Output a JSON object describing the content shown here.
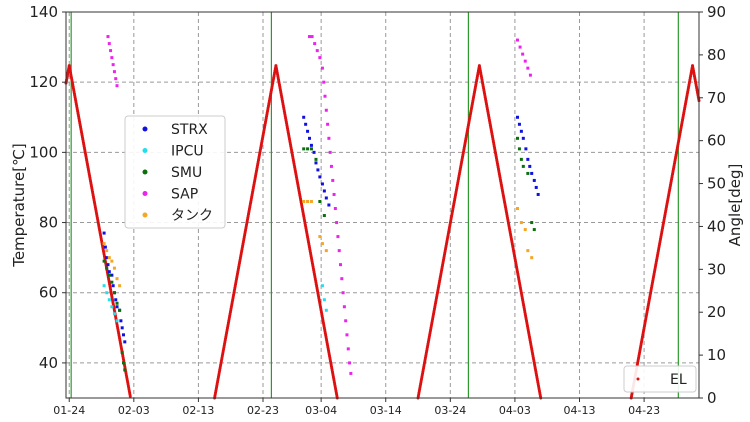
{
  "chart_data": {
    "type": "scatter",
    "title": "",
    "ylabel_left": "Temperature[℃]",
    "ylabel_right": "Angle[deg]",
    "xlabel": "",
    "x_ticks": [
      "01-24",
      "02-03",
      "02-13",
      "02-23",
      "03-04",
      "03-14",
      "03-24",
      "04-03",
      "04-13",
      "04-23"
    ],
    "x_tick_days": [
      0,
      10,
      20,
      30,
      39,
      49,
      59,
      69,
      79,
      89
    ],
    "x_range_days": [
      -0.5,
      97.5
    ],
    "ylim_left": [
      30,
      140
    ],
    "ylim_right": [
      0,
      90
    ],
    "yticks_left": [
      40,
      60,
      80,
      100,
      120,
      140
    ],
    "yticks_right": [
      0,
      10,
      20,
      30,
      40,
      50,
      60,
      70,
      80,
      90
    ],
    "grid": true,
    "green_vertical_lines_days": [
      0.3,
      31.3,
      61.8,
      94.3
    ],
    "legend_main": {
      "placement": "upper-left-center",
      "entries": [
        {
          "name": "STRX",
          "color": "#1010e0"
        },
        {
          "name": "IPCU",
          "color": "#20e0f0"
        },
        {
          "name": "SMU",
          "color": "#0b6f0b"
        },
        {
          "name": "SAP",
          "color": "#ee22ee"
        },
        {
          "name": "タンク",
          "color": "#f5a623"
        }
      ]
    },
    "legend_secondary": {
      "placement": "bottom-right",
      "entries": [
        {
          "name": "EL",
          "color": "#dd1111"
        }
      ]
    },
    "el_series": {
      "name": "EL",
      "axis": "right",
      "color": "#dd1111",
      "peaks_days": [
        0,
        32,
        63.5,
        96.5
      ],
      "peak_deg": 77.5,
      "half_width_days": 9.5
    },
    "temperature_series": [
      {
        "name": "STRX",
        "color": "#1010e0",
        "points": [
          [
            5.4,
            77
          ],
          [
            5.6,
            73
          ],
          [
            5.8,
            70
          ],
          [
            6.0,
            68
          ],
          [
            6.2,
            66
          ],
          [
            6.6,
            65
          ],
          [
            6.8,
            62
          ],
          [
            7.0,
            60
          ],
          [
            7.2,
            58
          ],
          [
            7.4,
            56
          ],
          [
            7.8,
            55
          ],
          [
            8.0,
            52
          ],
          [
            8.2,
            50
          ],
          [
            8.4,
            48
          ],
          [
            8.6,
            46
          ],
          [
            36.3,
            110
          ],
          [
            36.6,
            108
          ],
          [
            36.9,
            106
          ],
          [
            37.2,
            104
          ],
          [
            37.5,
            102
          ],
          [
            37.9,
            100
          ],
          [
            38.2,
            97
          ],
          [
            38.5,
            95
          ],
          [
            38.8,
            93
          ],
          [
            39.2,
            91
          ],
          [
            39.5,
            89
          ],
          [
            39.8,
            87
          ],
          [
            40.2,
            85
          ],
          [
            69.4,
            110
          ],
          [
            69.7,
            108
          ],
          [
            70.0,
            106
          ],
          [
            70.3,
            104
          ],
          [
            70.7,
            101
          ],
          [
            71.0,
            98
          ],
          [
            71.3,
            96
          ],
          [
            71.6,
            94
          ],
          [
            72.0,
            92
          ],
          [
            72.3,
            90
          ],
          [
            72.6,
            88
          ],
          [
            103.6,
            116
          ],
          [
            103.9,
            114
          ],
          [
            104.2,
            112
          ],
          [
            104.6,
            110
          ],
          [
            104.9,
            108
          ],
          [
            105.2,
            106
          ],
          [
            105.6,
            104
          ],
          [
            105.9,
            102
          ],
          [
            106.2,
            100
          ],
          [
            106.5,
            98
          ],
          [
            106.9,
            96
          ],
          [
            107.2,
            94
          ],
          [
            107.5,
            92
          ],
          [
            107.9,
            90
          ]
        ]
      },
      {
        "name": "IPCU",
        "color": "#20e0f0",
        "points": [
          [
            5.4,
            62
          ],
          [
            5.8,
            60
          ],
          [
            6.2,
            58
          ],
          [
            6.6,
            56
          ],
          [
            7.0,
            54
          ],
          [
            7.4,
            52
          ],
          [
            39.2,
            62
          ],
          [
            39.5,
            58
          ],
          [
            39.8,
            55
          ],
          [
            103.6,
            112
          ],
          [
            103.9,
            108
          ]
        ]
      },
      {
        "name": "SMU",
        "color": "#0b6f0b",
        "points": [
          [
            5.4,
            69
          ],
          [
            5.8,
            67
          ],
          [
            6.2,
            65
          ],
          [
            6.6,
            63
          ],
          [
            7.0,
            60
          ],
          [
            7.4,
            57
          ],
          [
            7.8,
            55
          ],
          [
            8.2,
            43
          ],
          [
            8.4,
            40
          ],
          [
            8.6,
            38
          ],
          [
            36.3,
            101
          ],
          [
            36.9,
            101
          ],
          [
            37.5,
            101
          ],
          [
            38.2,
            98
          ],
          [
            38.8,
            86
          ],
          [
            39.5,
            82
          ],
          [
            69.4,
            104
          ],
          [
            69.7,
            101
          ],
          [
            70.0,
            98
          ],
          [
            70.3,
            96
          ],
          [
            71.0,
            94
          ],
          [
            71.6,
            80
          ],
          [
            72.0,
            78
          ],
          [
            103.6,
            104
          ],
          [
            103.9,
            101
          ],
          [
            104.2,
            101
          ],
          [
            104.6,
            101
          ],
          [
            105.2,
            98
          ],
          [
            105.9,
            94
          ],
          [
            106.5,
            82
          ],
          [
            107.2,
            80
          ]
        ]
      },
      {
        "name": "SAP",
        "color": "#ee22ee",
        "points": [
          [
            6.0,
            133
          ],
          [
            6.2,
            131
          ],
          [
            6.4,
            129
          ],
          [
            6.6,
            127
          ],
          [
            6.8,
            125
          ],
          [
            7.0,
            123
          ],
          [
            7.2,
            121
          ],
          [
            7.4,
            119
          ],
          [
            37.2,
            133
          ],
          [
            37.6,
            133
          ],
          [
            38.0,
            131
          ],
          [
            38.4,
            129
          ],
          [
            38.8,
            127
          ],
          [
            39.2,
            124
          ],
          [
            39.4,
            120
          ],
          [
            39.6,
            116
          ],
          [
            39.8,
            112
          ],
          [
            40.0,
            108
          ],
          [
            40.2,
            104
          ],
          [
            40.4,
            100
          ],
          [
            40.6,
            96
          ],
          [
            40.8,
            92
          ],
          [
            41.0,
            88
          ],
          [
            41.2,
            84
          ],
          [
            41.4,
            80
          ],
          [
            41.6,
            76
          ],
          [
            41.8,
            72
          ],
          [
            42.0,
            68
          ],
          [
            42.2,
            64
          ],
          [
            42.4,
            60
          ],
          [
            42.6,
            56
          ],
          [
            42.8,
            52
          ],
          [
            43.0,
            48
          ],
          [
            43.2,
            44
          ],
          [
            43.4,
            40
          ],
          [
            43.6,
            37
          ],
          [
            69.4,
            132
          ],
          [
            69.8,
            130
          ],
          [
            70.2,
            128
          ],
          [
            70.6,
            126
          ],
          [
            71.0,
            124
          ],
          [
            71.4,
            122
          ],
          [
            103.2,
            128
          ],
          [
            103.6,
            130
          ],
          [
            104.0,
            132
          ],
          [
            104.4,
            130
          ],
          [
            104.8,
            128
          ],
          [
            105.2,
            126
          ],
          [
            105.6,
            124
          ],
          [
            106.0,
            122
          ],
          [
            106.4,
            120
          ],
          [
            106.8,
            118
          ],
          [
            107.2,
            116
          ],
          [
            107.4,
            112
          ],
          [
            107.6,
            108
          ],
          [
            107.8,
            104
          ],
          [
            108.0,
            100
          ],
          [
            108.2,
            96
          ],
          [
            108.4,
            92
          ],
          [
            108.6,
            88
          ],
          [
            108.8,
            84
          ],
          [
            109.0,
            80
          ],
          [
            109.2,
            76
          ],
          [
            109.4,
            72
          ],
          [
            109.6,
            68
          ],
          [
            109.8,
            64
          ],
          [
            110.0,
            60
          ],
          [
            110.2,
            56
          ],
          [
            110.4,
            52
          ],
          [
            110.6,
            48
          ],
          [
            110.8,
            44
          ],
          [
            111.0,
            40
          ]
        ]
      },
      {
        "name": "タンク",
        "color": "#f5a623",
        "points": [
          [
            5.4,
            74
          ],
          [
            5.8,
            72
          ],
          [
            6.2,
            70
          ],
          [
            6.6,
            69
          ],
          [
            7.0,
            67
          ],
          [
            7.4,
            64
          ],
          [
            7.8,
            62
          ],
          [
            36.3,
            86
          ],
          [
            36.9,
            86
          ],
          [
            37.5,
            86
          ],
          [
            38.8,
            76
          ],
          [
            39.2,
            74
          ],
          [
            39.8,
            72
          ],
          [
            69.4,
            84
          ],
          [
            70.0,
            80
          ],
          [
            70.6,
            78
          ],
          [
            71.0,
            72
          ],
          [
            71.6,
            70
          ],
          [
            103.2,
            86
          ],
          [
            103.9,
            86
          ],
          [
            104.6,
            84
          ],
          [
            105.2,
            82
          ],
          [
            105.9,
            78
          ],
          [
            106.5,
            74
          ],
          [
            107.2,
            72
          ]
        ]
      }
    ]
  }
}
